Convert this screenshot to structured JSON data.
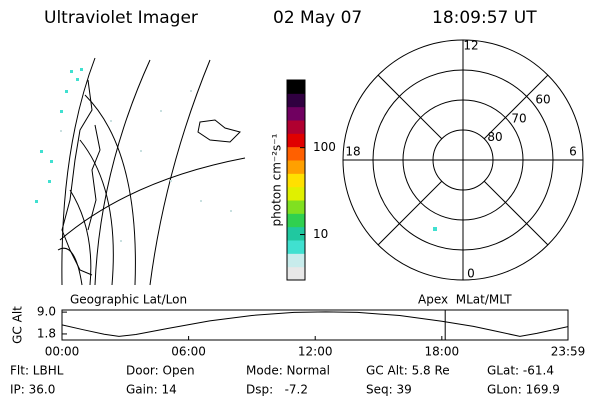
{
  "header": {
    "instrument": "Ultraviolet Imager",
    "date": "02 May 07",
    "time": "18:09:57 UT"
  },
  "colorbar": {
    "label": "photon cm⁻²s⁻¹",
    "log_scale": true,
    "lim": [
      3,
      600
    ],
    "ticks": [
      10,
      100
    ],
    "colors": [
      "#e8e8e8",
      "#c8ecec",
      "#40e0d0",
      "#20c8a0",
      "#30d050",
      "#80e020",
      "#e0f000",
      "#ffe000",
      "#ffa000",
      "#ff6000",
      "#e00000",
      "#b00030",
      "#700060",
      "#300040",
      "#000000"
    ]
  },
  "polar": {
    "rlim": 50,
    "lat_rings": [
      80,
      70,
      60
    ],
    "mlt_labels": [
      12,
      18,
      6,
      0
    ]
  },
  "chart_data": {
    "type": "line",
    "ylabel": "GC Alt",
    "left_label": "Geographic Lat/Lon",
    "right_label": "Apex  MLat/MLT",
    "x": [
      0,
      1,
      2,
      2.7,
      3.5,
      5,
      7,
      9,
      11,
      12.5,
      14,
      16,
      18,
      19.5,
      20.5,
      21.7,
      22.5,
      23.98
    ],
    "values": [
      4.8,
      3.2,
      1.7,
      1.0,
      1.6,
      3.6,
      6.1,
      7.9,
      8.9,
      9.1,
      8.9,
      7.9,
      6.0,
      4.3,
      2.8,
      1.0,
      2.0,
      4.2
    ],
    "color": "#000000",
    "ylim": [
      -0.2,
      9.7
    ],
    "yticks": [
      {
        "value": 9.0,
        "label": "9.0"
      },
      {
        "value": 1.8,
        "label": "1.8"
      }
    ],
    "xlim": [
      0,
      23.98
    ],
    "xticks": [
      {
        "value": 0,
        "label": "00:00"
      },
      {
        "value": 6,
        "label": "06:00"
      },
      {
        "value": 12,
        "label": "12:00"
      },
      {
        "value": 18,
        "label": "18:00"
      },
      {
        "value": 23.98,
        "label": "23:59"
      }
    ],
    "marker_x": 18.16,
    "marker_color": "#e00000"
  },
  "footer": {
    "rows": [
      [
        "Flt: LBHL",
        "Door: Open",
        "Mode: Normal",
        "GC Alt: 5.8 Re",
        "GLat: -61.4"
      ],
      [
        "IP: 36.0",
        "Gain: 14",
        "Dsp:   -7.2",
        "Seq: 39",
        "GLon: 169.9"
      ]
    ]
  }
}
